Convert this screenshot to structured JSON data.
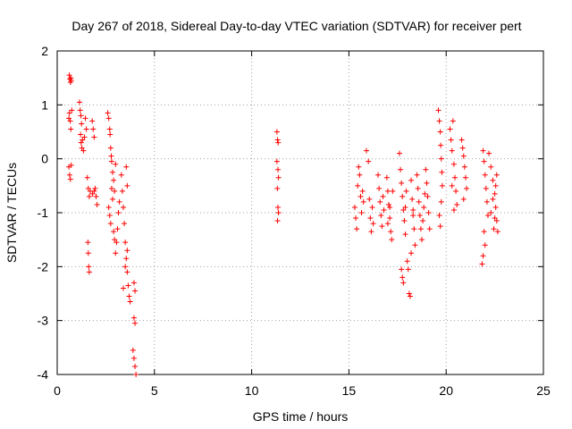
{
  "chart_data": {
    "type": "scatter",
    "title": "Day 267 of 2018, Sidereal Day-to-day VTEC variation (SDTVAR) for receiver pert",
    "xlabel": "GPS time / hours",
    "ylabel": "SDTVAR / TECUs",
    "xlim": [
      0,
      25
    ],
    "ylim": [
      -4,
      2
    ],
    "x_ticks": [
      0,
      5,
      10,
      15,
      20,
      25
    ],
    "y_ticks": [
      -4,
      -3,
      -2,
      -1,
      0,
      1,
      2
    ],
    "x_tick_labels": [
      "0",
      "5",
      "10",
      "15",
      "20",
      "25"
    ],
    "y_tick_labels": [
      "-4",
      "-3",
      "-2",
      "-1",
      "0",
      "1",
      "2"
    ],
    "grid": true,
    "marker": "+",
    "series": [
      {
        "name": "SDTVAR",
        "color": "#ff0000",
        "points": [
          [
            0.62,
            1.55
          ],
          [
            0.65,
            1.48
          ],
          [
            0.68,
            1.42
          ],
          [
            0.7,
            1.5
          ],
          [
            0.72,
            1.45
          ],
          [
            0.6,
            0.75
          ],
          [
            0.63,
            0.85
          ],
          [
            0.67,
            0.7
          ],
          [
            0.7,
            0.55
          ],
          [
            0.75,
            0.9
          ],
          [
            0.6,
            -0.15
          ],
          [
            0.64,
            -0.3
          ],
          [
            0.68,
            -0.38
          ],
          [
            0.72,
            -0.12
          ],
          [
            1.15,
            1.05
          ],
          [
            1.18,
            0.9
          ],
          [
            1.22,
            0.8
          ],
          [
            1.25,
            0.65
          ],
          [
            1.2,
            0.45
          ],
          [
            1.23,
            0.3
          ],
          [
            1.27,
            0.2
          ],
          [
            1.3,
            0.35
          ],
          [
            1.35,
            0.15
          ],
          [
            1.4,
            0.4
          ],
          [
            1.45,
            0.75
          ],
          [
            1.5,
            0.55
          ],
          [
            1.55,
            -0.35
          ],
          [
            1.6,
            -0.55
          ],
          [
            1.65,
            -0.7
          ],
          [
            1.7,
            -0.6
          ],
          [
            1.58,
            -1.55
          ],
          [
            1.6,
            -1.75
          ],
          [
            1.62,
            -2.0
          ],
          [
            1.65,
            -2.1
          ],
          [
            1.8,
            0.7
          ],
          [
            1.85,
            0.55
          ],
          [
            1.9,
            0.4
          ],
          [
            1.95,
            -0.55
          ],
          [
            2.0,
            -0.7
          ],
          [
            2.05,
            -0.85
          ],
          [
            1.82,
            -0.65
          ],
          [
            1.9,
            -0.6
          ],
          [
            2.6,
            0.85
          ],
          [
            2.65,
            0.75
          ],
          [
            2.7,
            0.55
          ],
          [
            2.72,
            0.45
          ],
          [
            2.75,
            0.2
          ],
          [
            2.78,
            0.05
          ],
          [
            2.8,
            -0.05
          ],
          [
            2.85,
            -0.25
          ],
          [
            2.9,
            -0.4
          ],
          [
            2.95,
            -0.6
          ],
          [
            3.0,
            -0.1
          ],
          [
            2.65,
            -0.9
          ],
          [
            2.7,
            -1.05
          ],
          [
            2.75,
            -1.2
          ],
          [
            2.8,
            -0.55
          ],
          [
            2.85,
            -0.75
          ],
          [
            2.9,
            -1.35
          ],
          [
            2.95,
            -1.5
          ],
          [
            3.0,
            -1.75
          ],
          [
            3.05,
            -1.55
          ],
          [
            3.1,
            -1.3
          ],
          [
            3.15,
            -1.0
          ],
          [
            3.2,
            -0.8
          ],
          [
            3.3,
            -0.3
          ],
          [
            3.35,
            -0.6
          ],
          [
            3.4,
            -0.9
          ],
          [
            3.45,
            -1.2
          ],
          [
            3.5,
            -1.55
          ],
          [
            3.55,
            -1.85
          ],
          [
            3.6,
            -2.1
          ],
          [
            3.65,
            -2.35
          ],
          [
            3.7,
            -2.55
          ],
          [
            3.75,
            -2.65
          ],
          [
            3.4,
            -2.4
          ],
          [
            3.5,
            -2.0
          ],
          [
            3.6,
            -1.7
          ],
          [
            3.55,
            -0.15
          ],
          [
            3.6,
            -0.5
          ],
          [
            3.95,
            -2.3
          ],
          [
            4.0,
            -2.45
          ],
          [
            3.95,
            -2.95
          ],
          [
            4.0,
            -3.05
          ],
          [
            3.9,
            -3.55
          ],
          [
            3.95,
            -3.7
          ],
          [
            4.0,
            -3.85
          ],
          [
            4.05,
            -4.0
          ],
          [
            11.3,
            0.5
          ],
          [
            11.33,
            0.35
          ],
          [
            11.36,
            0.3
          ],
          [
            11.3,
            -0.05
          ],
          [
            11.35,
            -0.2
          ],
          [
            11.38,
            -0.35
          ],
          [
            11.32,
            -0.55
          ],
          [
            11.35,
            -0.9
          ],
          [
            11.38,
            -1.0
          ],
          [
            11.33,
            -1.15
          ],
          [
            15.3,
            -0.9
          ],
          [
            15.35,
            -1.1
          ],
          [
            15.4,
            -1.3
          ],
          [
            15.45,
            -0.5
          ],
          [
            15.5,
            -0.15
          ],
          [
            15.55,
            -0.3
          ],
          [
            15.6,
            -0.7
          ],
          [
            15.65,
            -1.0
          ],
          [
            15.7,
            -0.6
          ],
          [
            15.75,
            -0.8
          ],
          [
            15.9,
            0.15
          ],
          [
            16.0,
            -0.05
          ],
          [
            16.05,
            -0.75
          ],
          [
            16.1,
            -1.1
          ],
          [
            16.15,
            -1.35
          ],
          [
            16.2,
            -0.9
          ],
          [
            16.25,
            -1.2
          ],
          [
            16.5,
            -0.3
          ],
          [
            16.55,
            -0.55
          ],
          [
            16.6,
            -0.8
          ],
          [
            16.65,
            -1.05
          ],
          [
            16.7,
            -1.25
          ],
          [
            16.75,
            -0.7
          ],
          [
            16.8,
            -0.95
          ],
          [
            16.95,
            -0.35
          ],
          [
            17.0,
            -0.6
          ],
          [
            17.05,
            -0.85
          ],
          [
            17.1,
            -1.1
          ],
          [
            17.15,
            -1.35
          ],
          [
            17.2,
            -1.5
          ],
          [
            17.25,
            -0.6
          ],
          [
            17.0,
            -1.2
          ],
          [
            17.1,
            -0.9
          ],
          [
            17.6,
            0.1
          ],
          [
            17.65,
            -0.2
          ],
          [
            17.7,
            -0.45
          ],
          [
            17.75,
            -0.7
          ],
          [
            17.8,
            -0.95
          ],
          [
            17.85,
            -1.15
          ],
          [
            17.9,
            -1.4
          ],
          [
            17.7,
            -2.05
          ],
          [
            17.75,
            -2.2
          ],
          [
            17.8,
            -2.3
          ],
          [
            17.9,
            -0.9
          ],
          [
            17.95,
            -0.6
          ],
          [
            18.0,
            -1.9
          ],
          [
            18.05,
            -2.05
          ],
          [
            18.1,
            -2.5
          ],
          [
            18.15,
            -2.55
          ],
          [
            18.2,
            -0.4
          ],
          [
            18.25,
            -0.75
          ],
          [
            18.3,
            -1.05
          ],
          [
            18.35,
            -1.3
          ],
          [
            18.4,
            -1.6
          ],
          [
            18.2,
            -1.75
          ],
          [
            18.3,
            -0.95
          ],
          [
            18.5,
            -0.3
          ],
          [
            18.55,
            -0.55
          ],
          [
            18.6,
            -0.8
          ],
          [
            18.65,
            -1.05
          ],
          [
            18.7,
            -1.3
          ],
          [
            18.75,
            -1.5
          ],
          [
            18.8,
            -1.15
          ],
          [
            18.85,
            -0.9
          ],
          [
            18.9,
            -0.65
          ],
          [
            18.95,
            -0.2
          ],
          [
            19.0,
            -0.45
          ],
          [
            19.05,
            -0.7
          ],
          [
            19.1,
            -1.0
          ],
          [
            19.15,
            -1.3
          ],
          [
            19.6,
            0.9
          ],
          [
            19.65,
            0.7
          ],
          [
            19.7,
            0.5
          ],
          [
            19.72,
            0.25
          ],
          [
            19.75,
            0.0
          ],
          [
            19.78,
            -0.25
          ],
          [
            19.8,
            -0.5
          ],
          [
            19.65,
            -1.05
          ],
          [
            19.7,
            -1.25
          ],
          [
            19.75,
            -0.8
          ],
          [
            20.2,
            0.55
          ],
          [
            20.25,
            0.35
          ],
          [
            20.3,
            0.15
          ],
          [
            20.35,
            0.7
          ],
          [
            20.4,
            -0.1
          ],
          [
            20.45,
            -0.35
          ],
          [
            20.5,
            -0.6
          ],
          [
            20.55,
            -0.85
          ],
          [
            20.3,
            -0.5
          ],
          [
            20.4,
            -0.95
          ],
          [
            20.8,
            0.35
          ],
          [
            20.85,
            0.2
          ],
          [
            20.9,
            0.05
          ],
          [
            20.95,
            -0.15
          ],
          [
            21.0,
            -0.35
          ],
          [
            21.05,
            -0.55
          ],
          [
            20.9,
            -0.75
          ],
          [
            21.9,
            0.15
          ],
          [
            21.95,
            -0.05
          ],
          [
            22.0,
            -0.3
          ],
          [
            22.05,
            -0.55
          ],
          [
            22.1,
            -0.8
          ],
          [
            22.15,
            -1.05
          ],
          [
            21.95,
            -1.35
          ],
          [
            22.0,
            -1.6
          ],
          [
            21.9,
            -1.8
          ],
          [
            21.85,
            -1.95
          ],
          [
            22.2,
            0.1
          ],
          [
            22.3,
            -0.15
          ],
          [
            22.4,
            -0.4
          ],
          [
            22.5,
            -0.65
          ],
          [
            22.55,
            -0.9
          ],
          [
            22.6,
            -1.15
          ],
          [
            22.3,
            -1.0
          ],
          [
            22.4,
            -0.75
          ],
          [
            22.45,
            -1.3
          ],
          [
            22.5,
            -1.1
          ],
          [
            22.55,
            -0.5
          ],
          [
            22.6,
            -0.3
          ],
          [
            22.65,
            -1.35
          ]
        ]
      }
    ]
  }
}
